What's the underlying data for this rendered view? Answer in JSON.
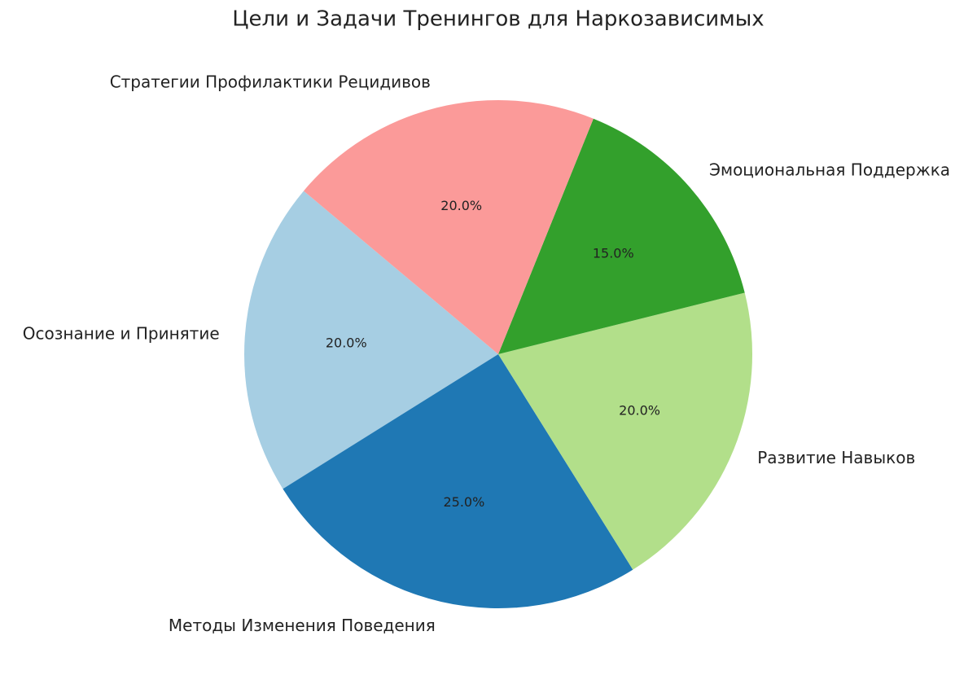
{
  "chart_data": {
    "type": "pie",
    "title": "Цели и Задачи Тренингов для Наркозависимых",
    "categories": [
      "Осознание и Принятие",
      "Методы Изменения Поведения",
      "Развитие Навыков",
      "Эмоциональная Поддержка",
      "Стратегии Профилактики Рецидивов"
    ],
    "values": [
      20,
      25,
      20,
      15,
      20
    ],
    "value_labels": [
      "20.0%",
      "25.0%",
      "20.0%",
      "15.0%",
      "20.0%"
    ],
    "colors": [
      "#a6cee3",
      "#1f78b4",
      "#b2df8a",
      "#33a02c",
      "#fb9a99"
    ],
    "startangle": 140
  }
}
